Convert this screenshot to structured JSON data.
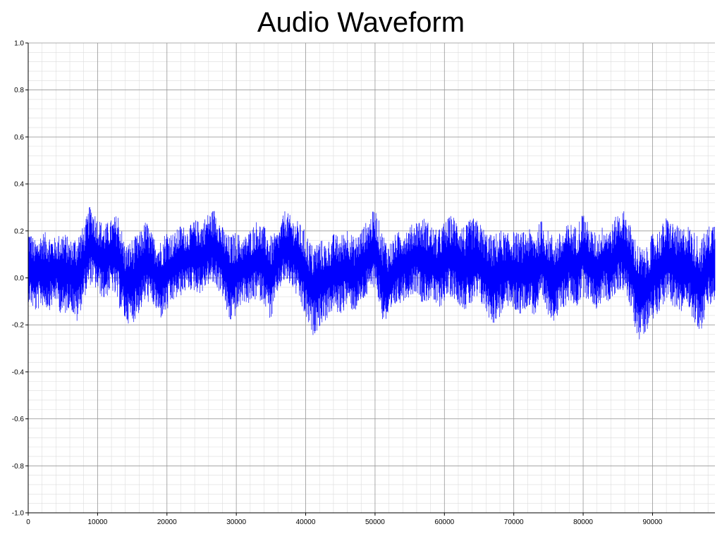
{
  "chart_data": {
    "type": "line",
    "title": "Audio Waveform",
    "xlabel": "",
    "ylabel": "",
    "xlim": [
      0,
      99000
    ],
    "ylim": [
      -1.0,
      1.0
    ],
    "grid": true,
    "x_ticks": [
      0,
      10000,
      20000,
      30000,
      40000,
      50000,
      60000,
      70000,
      80000,
      90000
    ],
    "x_tick_labels": [
      "0",
      "10000",
      "20000",
      "30000",
      "40000",
      "50000",
      "60000",
      "70000",
      "80000",
      "90000"
    ],
    "y_ticks": [
      1.0,
      0.8,
      0.6,
      0.4,
      0.2,
      0.0,
      -0.2,
      -0.4,
      -0.6,
      -0.8,
      -1.0
    ],
    "y_tick_labels": [
      "1.0",
      "0.8",
      "0.6",
      "0.4",
      "0.2",
      "0.0",
      "-0.2",
      "-0.4",
      "-0.6",
      "-0.8",
      "-1.0"
    ],
    "series": [
      {
        "color": "#0000ff",
        "x": [
          0,
          1000,
          2000,
          3000,
          4000,
          5000,
          6000,
          7000,
          8000,
          9000,
          10000,
          11000,
          12000,
          13000,
          14000,
          15000,
          16000,
          17000,
          18000,
          19000,
          20000,
          21000,
          22000,
          23000,
          24000,
          25000,
          26000,
          27000,
          28000,
          29000,
          30000,
          31000,
          32000,
          33000,
          34000,
          35000,
          36000,
          37000,
          38000,
          39000,
          40000,
          41000,
          42000,
          43000,
          44000,
          45000,
          46000,
          47000,
          48000,
          49000,
          50000,
          51000,
          52000,
          53000,
          54000,
          55000,
          56000,
          57000,
          58000,
          59000,
          60000,
          61000,
          62000,
          63000,
          64000,
          65000,
          66000,
          67000,
          68000,
          69000,
          70000,
          71000,
          72000,
          73000,
          74000,
          75000,
          76000,
          77000,
          78000,
          79000,
          80000,
          81000,
          82000,
          83000,
          84000,
          85000,
          86000,
          87000,
          88000,
          89000,
          90000,
          91000,
          92000,
          93000,
          94000,
          95000,
          96000,
          97000,
          98000,
          99000
        ],
        "y_max": [
          0.22,
          0.16,
          0.2,
          0.19,
          0.17,
          0.21,
          0.16,
          0.19,
          0.22,
          0.32,
          0.26,
          0.23,
          0.25,
          0.28,
          0.14,
          0.17,
          0.19,
          0.25,
          0.18,
          0.16,
          0.21,
          0.19,
          0.23,
          0.21,
          0.25,
          0.24,
          0.28,
          0.3,
          0.22,
          0.18,
          0.2,
          0.17,
          0.21,
          0.25,
          0.22,
          0.18,
          0.2,
          0.29,
          0.26,
          0.24,
          0.2,
          0.14,
          0.17,
          0.15,
          0.19,
          0.18,
          0.22,
          0.17,
          0.21,
          0.25,
          0.3,
          0.2,
          0.15,
          0.19,
          0.21,
          0.22,
          0.25,
          0.26,
          0.23,
          0.2,
          0.24,
          0.27,
          0.25,
          0.22,
          0.26,
          0.24,
          0.2,
          0.18,
          0.21,
          0.19,
          0.2,
          0.19,
          0.21,
          0.2,
          0.25,
          0.2,
          0.18,
          0.2,
          0.24,
          0.22,
          0.29,
          0.21,
          0.19,
          0.23,
          0.22,
          0.28,
          0.29,
          0.21,
          0.14,
          0.12,
          0.19,
          0.21,
          0.26,
          0.24,
          0.21,
          0.23,
          0.2,
          0.17,
          0.22,
          0.25
        ],
        "y_min": [
          -0.1,
          -0.15,
          -0.12,
          -0.14,
          -0.1,
          -0.18,
          -0.12,
          -0.2,
          -0.09,
          -0.03,
          -0.06,
          -0.1,
          -0.05,
          -0.12,
          -0.19,
          -0.2,
          -0.15,
          -0.1,
          -0.12,
          -0.18,
          -0.15,
          -0.1,
          -0.08,
          -0.05,
          -0.06,
          -0.07,
          -0.03,
          -0.04,
          -0.08,
          -0.2,
          -0.16,
          -0.1,
          -0.12,
          -0.09,
          -0.11,
          -0.19,
          -0.06,
          -0.02,
          -0.04,
          -0.1,
          -0.18,
          -0.25,
          -0.21,
          -0.18,
          -0.14,
          -0.16,
          -0.12,
          -0.15,
          -0.11,
          -0.08,
          -0.03,
          -0.18,
          -0.2,
          -0.12,
          -0.1,
          -0.08,
          -0.06,
          -0.12,
          -0.09,
          -0.14,
          -0.1,
          -0.08,
          -0.11,
          -0.14,
          -0.12,
          -0.1,
          -0.15,
          -0.2,
          -0.17,
          -0.12,
          -0.14,
          -0.16,
          -0.12,
          -0.17,
          -0.12,
          -0.16,
          -0.19,
          -0.14,
          -0.1,
          -0.13,
          -0.08,
          -0.1,
          -0.14,
          -0.09,
          -0.11,
          -0.06,
          -0.05,
          -0.16,
          -0.27,
          -0.23,
          -0.18,
          -0.14,
          -0.1,
          -0.12,
          -0.17,
          -0.1,
          -0.2,
          -0.23,
          -0.13,
          -0.12
        ]
      }
    ]
  }
}
